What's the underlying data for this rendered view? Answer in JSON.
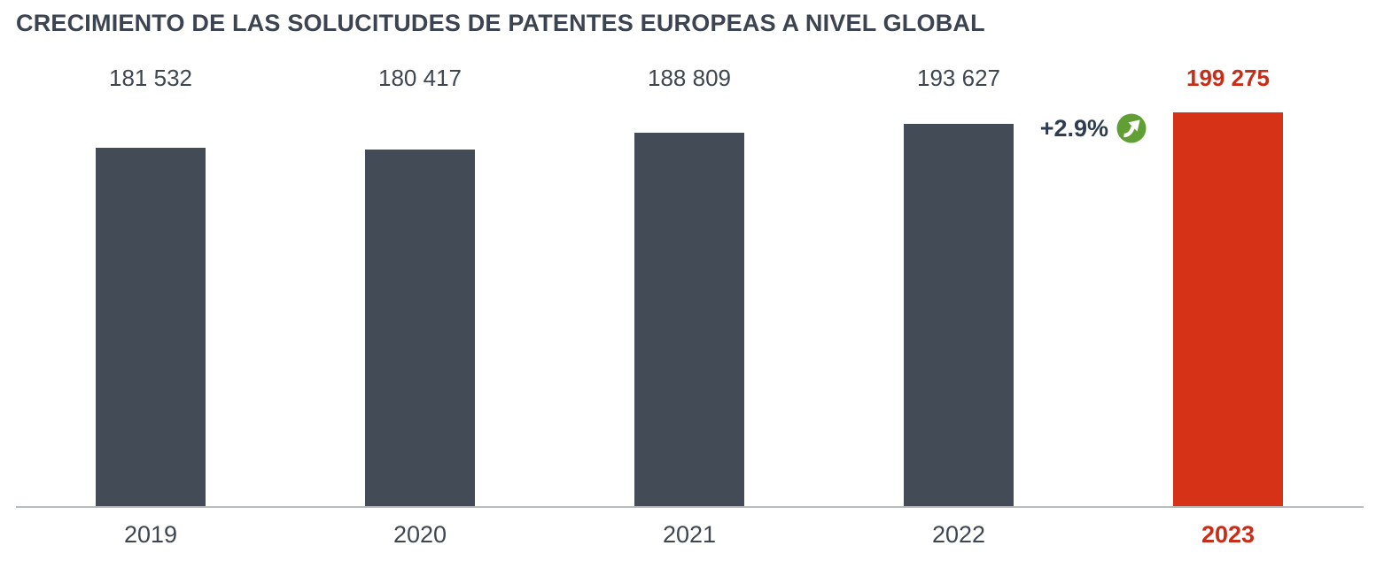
{
  "title": "CRECIMIENTO DE LAS SOLUCITUDES DE PATENTES EUROPEAS A NIVEL GLOBAL",
  "annotation": {
    "growth_label": "+2.9%",
    "icon": "arrow-up-right-circle-icon",
    "icon_color": "#5f9f33",
    "icon_arrow_color": "#ffffff"
  },
  "colors": {
    "bar_default": "#434b57",
    "bar_highlight": "#d63217",
    "label_default": "#3d4651",
    "label_highlight": "#c92d18",
    "annotation_text": "#2e3d52",
    "baseline": "#b8bbbf",
    "title_text": "#3b4450"
  },
  "chart_data": {
    "type": "bar",
    "title": "CRECIMIENTO DE LAS SOLUCITUDES DE PATENTES EUROPEAS A NIVEL GLOBAL",
    "categories": [
      "2019",
      "2020",
      "2021",
      "2022",
      "2023"
    ],
    "values": [
      181532,
      180417,
      188809,
      193627,
      199275
    ],
    "value_labels": [
      "181 532",
      "180 417",
      "188 809",
      "193 627",
      "199 275"
    ],
    "highlight_index": 4,
    "annotation": "+2.9%",
    "annotation_target": "2023",
    "xlabel": "",
    "ylabel": "",
    "ylim": [
      0,
      199275
    ],
    "grid": false,
    "legend": false,
    "data_labels": true
  }
}
